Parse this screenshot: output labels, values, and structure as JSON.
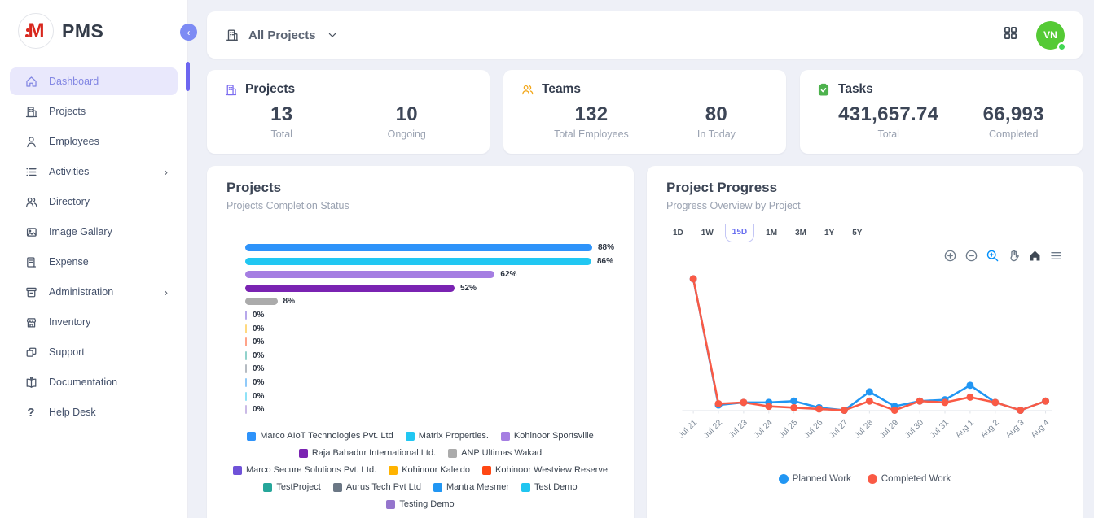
{
  "app": {
    "name": "PMS"
  },
  "topbar": {
    "selector_label": "All Projects"
  },
  "user": {
    "initials": "VN",
    "avatar_color": "#55ca35",
    "status": "online"
  },
  "sidebar": {
    "items": [
      {
        "label": "Dashboard",
        "icon": "home-icon",
        "active": true
      },
      {
        "label": "Projects",
        "icon": "building-icon"
      },
      {
        "label": "Employees",
        "icon": "person-icon"
      },
      {
        "label": "Activities",
        "icon": "list-icon",
        "expandable": true
      },
      {
        "label": "Directory",
        "icon": "people-icon"
      },
      {
        "label": "Image Gallary",
        "icon": "image-icon"
      },
      {
        "label": "Expense",
        "icon": "receipt-icon"
      },
      {
        "label": "Administration",
        "icon": "archive-icon",
        "expandable": true
      },
      {
        "label": "Inventory",
        "icon": "store-icon"
      },
      {
        "label": "Support",
        "icon": "copy-icon"
      },
      {
        "label": "Documentation",
        "icon": "book-icon"
      },
      {
        "label": "Help Desk",
        "icon": "help-icon"
      }
    ]
  },
  "stats": [
    {
      "title": "Projects",
      "icon": "building-icon",
      "accent": "#7b6cf0",
      "metrics": [
        {
          "value": "13",
          "label": "Total"
        },
        {
          "value": "10",
          "label": "Ongoing"
        }
      ]
    },
    {
      "title": "Teams",
      "icon": "people-icon",
      "accent": "#f2a71b",
      "metrics": [
        {
          "value": "132",
          "label": "Total Employees"
        },
        {
          "value": "80",
          "label": "In Today"
        }
      ]
    },
    {
      "title": "Tasks",
      "icon": "clipboard-check-icon",
      "accent": "#4db24d",
      "metrics": [
        {
          "value": "431,657.74",
          "label": "Total"
        },
        {
          "value": "66,993",
          "label": "Completed"
        }
      ]
    }
  ],
  "chart_data": [
    {
      "type": "bar",
      "orientation": "horizontal",
      "title": "Projects",
      "subtitle": "Projects Completion Status",
      "categories": [
        "Marco AIoT Technologies Pvt. Ltd",
        "Matrix Properties.",
        "Kohinoor Sportsville",
        "Raja Bahadur International Ltd.",
        "ANP Ultimas Wakad",
        "Marco Secure Solutions Pvt. Ltd.",
        "Kohinoor Kaleido",
        "Kohinoor Westview Reserve",
        "TestProject",
        "Aurus Tech Pvt Ltd",
        "Mantra Mesmer",
        "Test Demo",
        "Testing Demo"
      ],
      "values": [
        88,
        86,
        62,
        52,
        8,
        0,
        0,
        0,
        0,
        0,
        0,
        0,
        0
      ],
      "value_suffix": "%",
      "colors": [
        "#2E93fA",
        "#21c7f2",
        "#a57ee2",
        "#7a23b2",
        "#ababab",
        "#6f52d8",
        "#ffb300",
        "#ff4713",
        "#26a69a",
        "#6b7785",
        "#2196f3",
        "#20c5f0",
        "#9575cd"
      ],
      "xlim": [
        0,
        100
      ],
      "legend_position": "bottom",
      "grid": false
    },
    {
      "type": "line",
      "title": "Project Progress",
      "subtitle": "Progress Overview by Project",
      "ranges": [
        "1D",
        "1W",
        "15D",
        "1M",
        "3M",
        "1Y",
        "5Y"
      ],
      "selected_range": "15D",
      "x": [
        "Jul 21",
        "Jul 22",
        "Jul 23",
        "Jul 24",
        "Jul 25",
        "Jul 26",
        "Jul 27",
        "Jul 28",
        "Jul 29",
        "Jul 30",
        "Jul 31",
        "Aug 1",
        "Aug 2",
        "Aug 3",
        "Aug 4"
      ],
      "series": [
        {
          "name": "Planned Work",
          "color": "#2196f3",
          "values": [
            100,
            4,
            6,
            6,
            7,
            2,
            0,
            14,
            3,
            7,
            8,
            19,
            6,
            0,
            7
          ]
        },
        {
          "name": "Completed Work",
          "color": "#fa5a45",
          "values": [
            100,
            5,
            6,
            3,
            2,
            1,
            0,
            7,
            0,
            7,
            6,
            10,
            6,
            0,
            7
          ]
        }
      ],
      "ylim": [
        0,
        100
      ],
      "y_axis_hidden": true,
      "legend_position": "bottom",
      "toolbar": [
        "zoom-in",
        "zoom-out",
        "selection-zoom",
        "pan",
        "reset-home",
        "menu"
      ],
      "toolbar_active": "selection-zoom"
    }
  ]
}
